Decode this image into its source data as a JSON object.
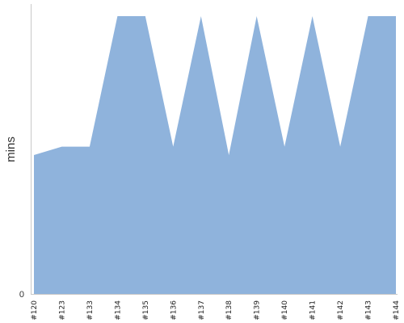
{
  "chart_data": {
    "type": "area",
    "categories": [
      "#120",
      "#123",
      "#133",
      "#134",
      "#135",
      "#136",
      "#137",
      "#138",
      "#139",
      "#140",
      "#141",
      "#142",
      "#143",
      "#144"
    ],
    "series": [
      {
        "values": [
          0.5,
          0.53,
          0.53,
          1.0,
          1.0,
          0.53,
          1.0,
          0.5,
          1.0,
          0.53,
          1.0,
          0.53,
          1.0,
          1.0
        ]
      }
    ],
    "ylabel": "mins",
    "yticks": [
      "0"
    ],
    "color": "#8fb3dc",
    "grid": false
  }
}
